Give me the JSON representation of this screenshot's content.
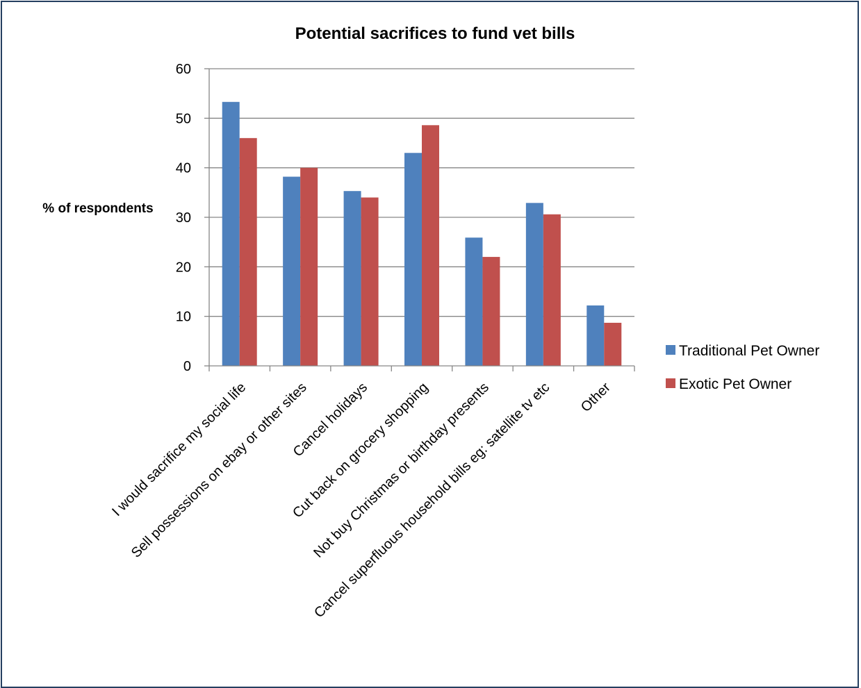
{
  "chart_data": {
    "type": "bar",
    "title": "Potential sacrifices to fund vet bills",
    "ylabel": "% of respondents",
    "xlabel": "",
    "ylim": [
      0,
      60
    ],
    "yticks": [
      0,
      10,
      20,
      30,
      40,
      50,
      60
    ],
    "grid": true,
    "legend_position": "right",
    "categories": [
      "I would sacrifice my social life",
      "Sell possessions on ebay or other sites",
      "Cancel holidays",
      "Cut back on grocery shopping",
      "Not buy Christmas or birthday presents",
      "Cancel superfluous household bills eg: satellite tv etc",
      "Other"
    ],
    "series": [
      {
        "name": "Traditional Pet Owner",
        "color": "#4f81bd",
        "values": [
          53.3,
          38.2,
          35.3,
          43.0,
          25.9,
          32.9,
          12.2
        ]
      },
      {
        "name": "Exotic Pet Owner",
        "color": "#c0504d",
        "values": [
          46.0,
          40.0,
          34.0,
          48.6,
          22.0,
          30.6,
          8.7
        ]
      }
    ]
  }
}
